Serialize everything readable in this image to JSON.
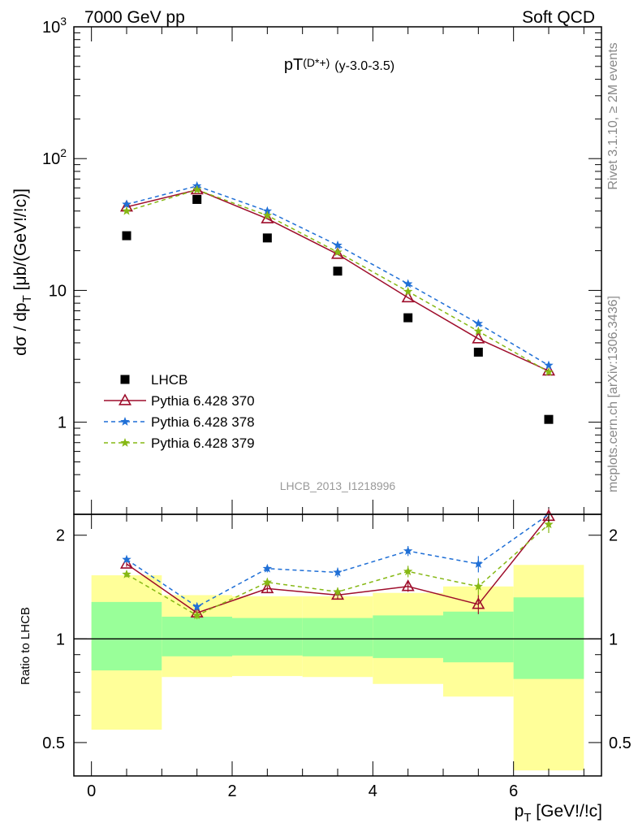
{
  "header": {
    "left": "7000 GeV pp",
    "right": "Soft QCD"
  },
  "title": {
    "main": "pT",
    "sup": "(D*+)",
    "range": "(y-3.0-3.5)"
  },
  "side_labels": {
    "rivet": "Rivet 3.1.10, ≥ 2M events",
    "source": "mcplots.cern.ch [arXiv:1306.3436]"
  },
  "watermark": "LHCB_2013_I1218996",
  "colors": {
    "data": "#000000",
    "p370": "#9e0d2b",
    "p378": "#1f6fd6",
    "p379": "#86b814",
    "band_inner": "#99ff99",
    "band_outer": "#ffff99"
  },
  "chart_data": [
    {
      "type": "scatter",
      "title": "pT(D*+) (y-3.0-3.5)",
      "ylabel": "dσ / dp_T [μb/(GeV!/!c)]",
      "xlabel": "p_T [GeV!/!c]",
      "x_range": [
        -0.25,
        7.25
      ],
      "y_range": [
        0.2,
        1000
      ],
      "y_scale": "log",
      "y_ticks": [
        "1",
        "10",
        "10^2",
        "10^3"
      ],
      "legend_position": "lower-left",
      "x": [
        0.5,
        1.5,
        2.5,
        3.5,
        4.5,
        5.5,
        6.5
      ],
      "series": [
        {
          "name": "LHCB",
          "marker": "square",
          "values": [
            26,
            49,
            25,
            14,
            6.2,
            3.4,
            1.05
          ]
        },
        {
          "name": "Pythia 6.428 370",
          "marker": "open-triangle",
          "line": "solid",
          "values": [
            43,
            58,
            35,
            18.8,
            8.8,
            4.3,
            2.45
          ]
        },
        {
          "name": "Pythia 6.428 378",
          "marker": "star",
          "line": "dashed",
          "values": [
            45,
            62,
            40,
            22,
            11.2,
            5.6,
            2.7
          ]
        },
        {
          "name": "Pythia 6.428 379",
          "marker": "star",
          "line": "dashed",
          "values": [
            40,
            58,
            37,
            19.5,
            9.8,
            4.9,
            2.4
          ]
        }
      ]
    },
    {
      "type": "scatter",
      "ylabel": "Ratio to LHCB",
      "xlabel": "p_T [GeV!/!c]",
      "x_range": [
        -0.25,
        7.25
      ],
      "y_range": [
        0.4,
        2.3
      ],
      "y_scale": "log",
      "x_ticks": [
        "0",
        "2",
        "4",
        "6"
      ],
      "y_ticks": [
        "0.5",
        "1",
        "2"
      ],
      "x": [
        0.5,
        1.5,
        2.5,
        3.5,
        4.5,
        5.5,
        6.5
      ],
      "bins": [
        [
          0,
          1
        ],
        [
          1,
          2
        ],
        [
          2,
          3
        ],
        [
          3,
          4
        ],
        [
          4,
          5
        ],
        [
          5,
          6
        ],
        [
          6,
          7
        ]
      ],
      "band_inner": {
        "low": [
          0.81,
          0.89,
          0.895,
          0.89,
          0.88,
          0.855,
          0.765
        ],
        "high": [
          1.28,
          1.16,
          1.15,
          1.15,
          1.17,
          1.2,
          1.32
        ]
      },
      "band_outer": {
        "low": [
          0.545,
          0.775,
          0.78,
          0.775,
          0.74,
          0.68,
          0.415
        ],
        "high": [
          1.53,
          1.34,
          1.33,
          1.33,
          1.36,
          1.42,
          1.64
        ]
      },
      "series": [
        {
          "name": "Pythia 6.428 370",
          "values": [
            1.65,
            1.19,
            1.4,
            1.34,
            1.42,
            1.26,
            2.27
          ],
          "errors": [
            0.03,
            0.03,
            0.04,
            0.04,
            0.05,
            0.08,
            0.12
          ]
        },
        {
          "name": "Pythia 6.428 378",
          "values": [
            1.7,
            1.24,
            1.6,
            1.56,
            1.8,
            1.65,
            2.5
          ],
          "errors": [
            0.03,
            0.03,
            0.04,
            0.05,
            0.06,
            0.09,
            0.13
          ]
        },
        {
          "name": "Pythia 6.428 379",
          "values": [
            1.54,
            1.17,
            1.46,
            1.37,
            1.57,
            1.42,
            2.15
          ],
          "errors": [
            0.03,
            0.03,
            0.04,
            0.04,
            0.06,
            0.08,
            0.12
          ]
        }
      ]
    }
  ]
}
